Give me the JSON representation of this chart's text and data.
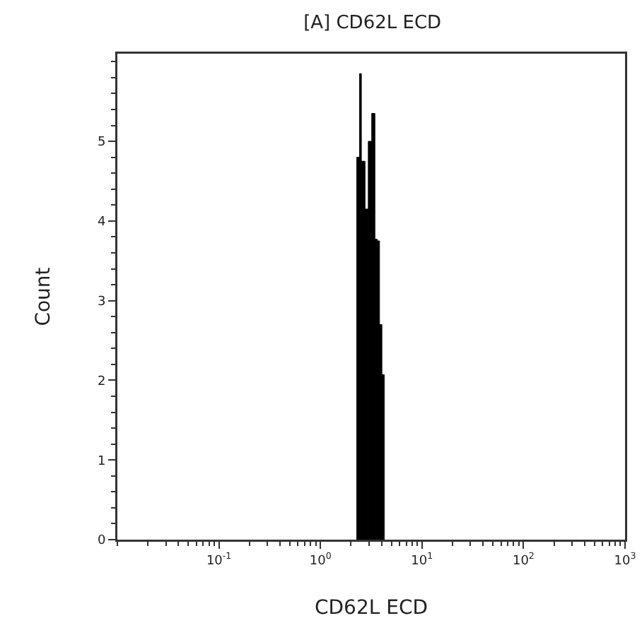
{
  "chart_data": {
    "type": "histogram",
    "title": "[A] CD62L ECD",
    "xlabel": "CD62L ECD",
    "ylabel": "Count",
    "log": "x",
    "color": "#000000",
    "bins": [
      2.28,
      2.43,
      2.53,
      2.75,
      2.96,
      3.2,
      3.44,
      3.63,
      3.82,
      4.03,
      4.25
    ],
    "values": [
      4.8,
      5.85,
      4.75,
      4.15,
      5.0,
      5.35,
      3.77,
      3.75,
      2.7,
      2.07
    ],
    "xlim": [
      0.01,
      1000
    ],
    "xticks": [
      {
        "value": 0.1,
        "label": "10$^{-1}$"
      },
      {
        "value": 1,
        "label": "10$^{0}$"
      },
      {
        "value": 10,
        "label": "10$^{1}$"
      },
      {
        "value": 100,
        "label": "10$^{2}$"
      },
      {
        "value": 1000,
        "label": "10$^{3}$"
      }
    ],
    "ylim": [
      0,
      6.1
    ],
    "yticks": [
      0,
      1,
      2,
      3,
      4,
      5
    ],
    "grid": false
  }
}
